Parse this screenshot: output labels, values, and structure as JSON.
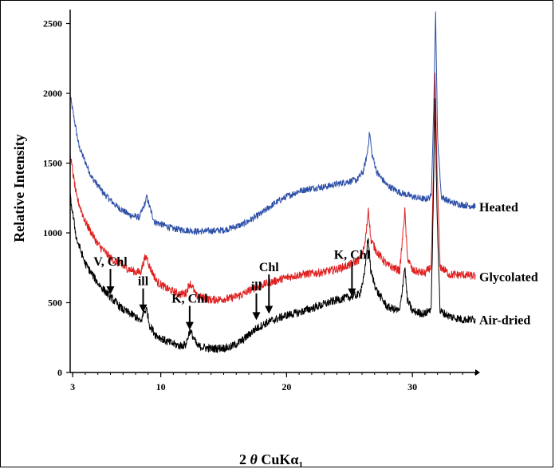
{
  "chart_data": {
    "type": "line",
    "title": "",
    "xlabel": "2 θ CuKα1",
    "ylabel": "Relative Intensity",
    "xlim": [
      2.8,
      35
    ],
    "ylim": [
      0,
      2600
    ],
    "x_ticks": [
      3,
      10,
      20,
      30
    ],
    "y_ticks": [
      0,
      500,
      1000,
      1500,
      2000,
      2500
    ],
    "grid": false,
    "legend": "none",
    "series": [
      {
        "name": "Heated",
        "color": "#2d4fa8",
        "noise": 24,
        "points": [
          [
            2.8,
            1980
          ],
          [
            3.5,
            1620
          ],
          [
            4.5,
            1400
          ],
          [
            5.5,
            1280
          ],
          [
            6.5,
            1190
          ],
          [
            7.5,
            1130
          ],
          [
            8.3,
            1110
          ],
          [
            8.7,
            1200
          ],
          [
            8.9,
            1260
          ],
          [
            9.1,
            1190
          ],
          [
            9.5,
            1080
          ],
          [
            11,
            1030
          ],
          [
            13,
            1010
          ],
          [
            15,
            1020
          ],
          [
            16.5,
            1060
          ],
          [
            18,
            1140
          ],
          [
            19,
            1210
          ],
          [
            20,
            1260
          ],
          [
            21,
            1300
          ],
          [
            22,
            1320
          ],
          [
            23,
            1330
          ],
          [
            24,
            1350
          ],
          [
            25,
            1370
          ],
          [
            25.6,
            1380
          ],
          [
            26.1,
            1440
          ],
          [
            26.4,
            1560
          ],
          [
            26.6,
            1720
          ],
          [
            26.8,
            1560
          ],
          [
            27.2,
            1430
          ],
          [
            28,
            1340
          ],
          [
            29,
            1290
          ],
          [
            30,
            1260
          ],
          [
            31,
            1240
          ],
          [
            31.5,
            1260
          ],
          [
            31.7,
            1900
          ],
          [
            31.85,
            2580
          ],
          [
            32,
            1700
          ],
          [
            32.3,
            1260
          ],
          [
            33,
            1220
          ],
          [
            34,
            1200
          ],
          [
            35,
            1190
          ]
        ]
      },
      {
        "name": "Glycolated",
        "color": "#e02020",
        "noise": 30,
        "points": [
          [
            2.8,
            1560
          ],
          [
            3.3,
            1260
          ],
          [
            4,
            1080
          ],
          [
            5,
            920
          ],
          [
            6,
            820
          ],
          [
            7,
            760
          ],
          [
            8,
            720
          ],
          [
            8.4,
            720
          ],
          [
            8.7,
            810
          ],
          [
            8.9,
            830
          ],
          [
            9.1,
            760
          ],
          [
            9.7,
            650
          ],
          [
            10.5,
            600
          ],
          [
            11.5,
            560
          ],
          [
            12,
            570
          ],
          [
            12.3,
            640
          ],
          [
            12.5,
            620
          ],
          [
            12.8,
            550
          ],
          [
            14,
            520
          ],
          [
            15.5,
            530
          ],
          [
            16.5,
            560
          ],
          [
            17.5,
            610
          ],
          [
            18.5,
            640
          ],
          [
            20,
            680
          ],
          [
            21,
            700
          ],
          [
            22,
            710
          ],
          [
            23,
            720
          ],
          [
            24,
            740
          ],
          [
            25,
            770
          ],
          [
            25.8,
            810
          ],
          [
            26.2,
            900
          ],
          [
            26.4,
            1060
          ],
          [
            26.5,
            1180
          ],
          [
            26.7,
            950
          ],
          [
            27.2,
            860
          ],
          [
            28,
            770
          ],
          [
            29,
            730
          ],
          [
            29.3,
            1050
          ],
          [
            29.4,
            1160
          ],
          [
            29.6,
            830
          ],
          [
            30,
            730
          ],
          [
            31,
            710
          ],
          [
            31.5,
            760
          ],
          [
            31.7,
            1500
          ],
          [
            31.8,
            2160
          ],
          [
            31.95,
            1500
          ],
          [
            32.2,
            760
          ],
          [
            33,
            700
          ],
          [
            34,
            700
          ],
          [
            35,
            690
          ]
        ]
      },
      {
        "name": "Air-dried",
        "color": "#000000",
        "noise": 30,
        "points": [
          [
            2.8,
            1260
          ],
          [
            3.3,
            960
          ],
          [
            4,
            780
          ],
          [
            5,
            640
          ],
          [
            6,
            540
          ],
          [
            7,
            450
          ],
          [
            8,
            400
          ],
          [
            8.4,
            360
          ],
          [
            8.7,
            440
          ],
          [
            8.9,
            450
          ],
          [
            9.1,
            340
          ],
          [
            9.6,
            270
          ],
          [
            10.5,
            220
          ],
          [
            11.5,
            190
          ],
          [
            12,
            200
          ],
          [
            12.3,
            300
          ],
          [
            12.5,
            270
          ],
          [
            12.9,
            190
          ],
          [
            14,
            170
          ],
          [
            15.5,
            180
          ],
          [
            16.5,
            230
          ],
          [
            17.5,
            310
          ],
          [
            18.5,
            360
          ],
          [
            20,
            410
          ],
          [
            21,
            430
          ],
          [
            22,
            460
          ],
          [
            23,
            490
          ],
          [
            24,
            520
          ],
          [
            25,
            540
          ],
          [
            25.8,
            560
          ],
          [
            26.2,
            700
          ],
          [
            26.4,
            910
          ],
          [
            26.5,
            960
          ],
          [
            26.7,
            720
          ],
          [
            27.2,
            580
          ],
          [
            28,
            470
          ],
          [
            29,
            440
          ],
          [
            29.3,
            680
          ],
          [
            29.4,
            760
          ],
          [
            29.6,
            520
          ],
          [
            30,
            440
          ],
          [
            31,
            420
          ],
          [
            31.5,
            460
          ],
          [
            31.7,
            1400
          ],
          [
            31.8,
            1960
          ],
          [
            31.95,
            1200
          ],
          [
            32.2,
            440
          ],
          [
            33,
            400
          ],
          [
            34,
            380
          ],
          [
            35,
            380
          ]
        ]
      }
    ],
    "series_labels": [
      "Heated",
      "Glycolated",
      "Air-dried"
    ],
    "annotations": [
      {
        "text": "V, Chl",
        "x": 6.0,
        "y_target": 560,
        "y_text": 765
      },
      {
        "text": "ill",
        "x": 8.6,
        "y_target": 430,
        "y_text": 625
      },
      {
        "text": "K, Chl",
        "x": 12.3,
        "y_target": 305,
        "y_text": 500
      },
      {
        "text": "ill",
        "x": 17.6,
        "y_target": 375,
        "y_text": 590
      },
      {
        "text": "Chl",
        "x": 18.6,
        "y_target": 420,
        "y_text": 725
      },
      {
        "text": "K, Chl",
        "x": 25.2,
        "y_target": 545,
        "y_text": 815
      }
    ]
  }
}
